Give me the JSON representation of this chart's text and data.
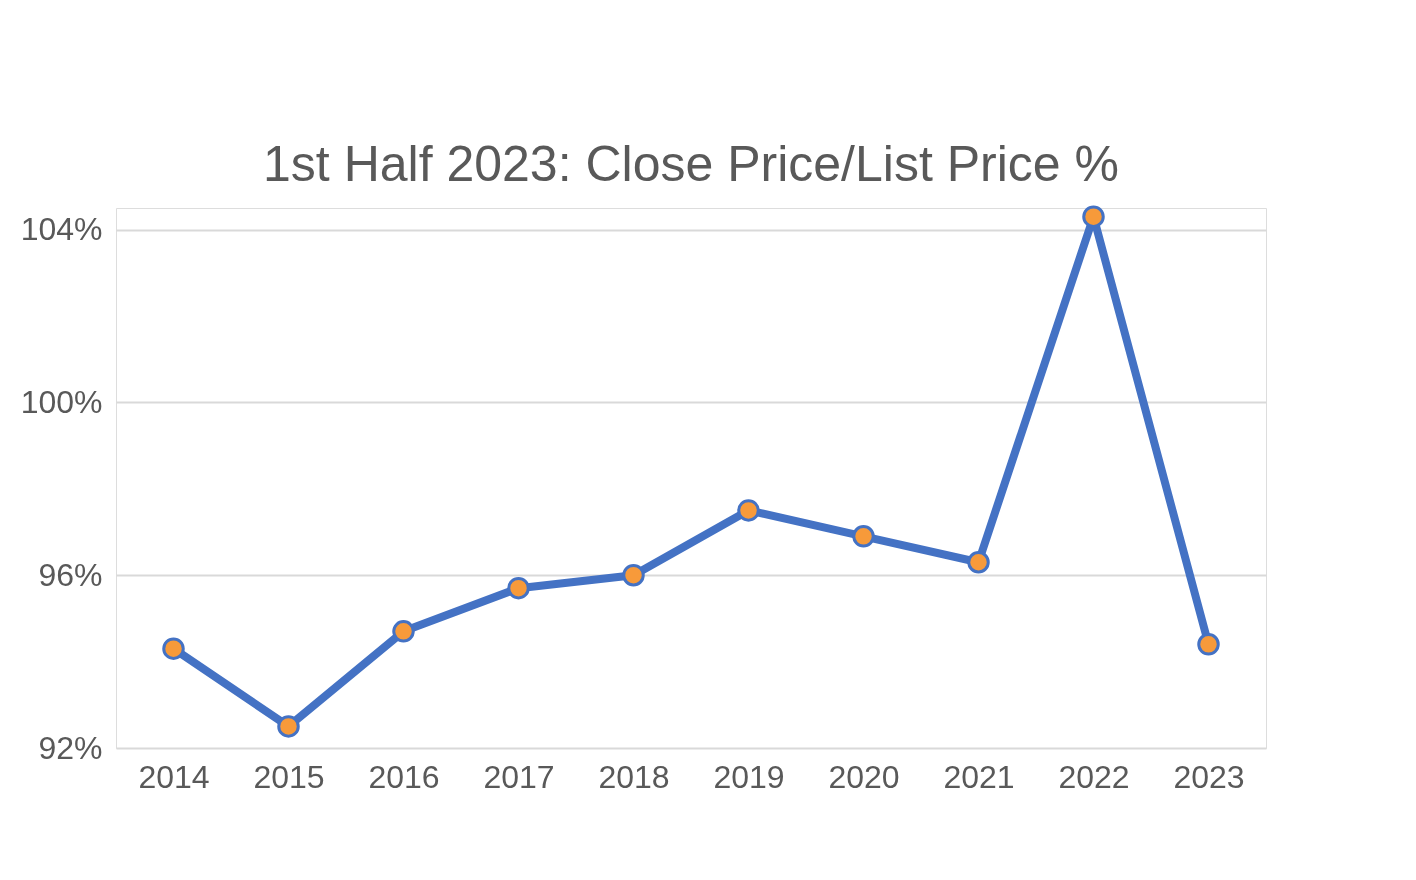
{
  "chart_data": {
    "type": "line",
    "title": "1st Half 2023: Close Price/List Price %",
    "categories": [
      "2014",
      "2015",
      "2016",
      "2017",
      "2018",
      "2019",
      "2020",
      "2021",
      "2022",
      "2023"
    ],
    "series": [
      {
        "color": "#4472c4",
        "colors": [
          "#f79a3a",
          "#f79a3a",
          "#f79a3a",
          "#f79a3a",
          "#f79a3a",
          "#f79a3a",
          "#f79a3a",
          "#f79a3a",
          "#f79a3a",
          "#f79a3a"
        ],
        "values": [
          94.3,
          92.5,
          94.7,
          95.7,
          96.0,
          97.5,
          96.9,
          96.3,
          104.3,
          94.4
        ]
      }
    ],
    "ylim": [
      92,
      104.5
    ],
    "yticks": [
      {
        "value": 92,
        "label": "92%"
      },
      {
        "value": 96,
        "label": "96%"
      },
      {
        "value": 100,
        "label": "100%"
      },
      {
        "value": 104,
        "label": "104%"
      }
    ],
    "grid": "y",
    "marker": "circle",
    "line_style": "solid"
  }
}
